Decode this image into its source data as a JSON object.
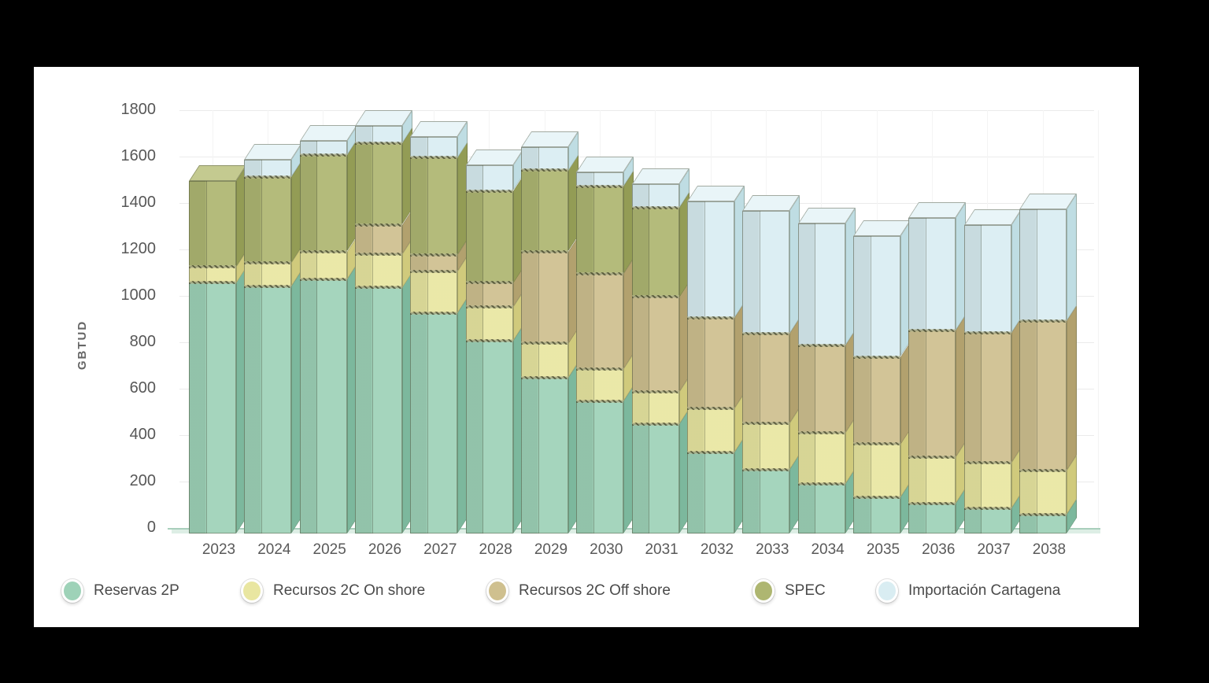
{
  "window": {
    "background": "#000000",
    "card_background": "#ffffff"
  },
  "chart_data": {
    "type": "bar",
    "stacked": true,
    "pseudo_3d": true,
    "title": "",
    "xlabel": "",
    "ylabel": "GBTUD",
    "ylim": [
      0,
      1800
    ],
    "yticks": [
      0,
      200,
      400,
      600,
      800,
      1000,
      1200,
      1400,
      1600,
      1800
    ],
    "grid": true,
    "legend_position": "bottom",
    "categories": [
      "2023",
      "2024",
      "2025",
      "2026",
      "2027",
      "2028",
      "2029",
      "2030",
      "2031",
      "2032",
      "2033",
      "2034",
      "2035",
      "2036",
      "2037",
      "2038"
    ],
    "series": [
      {
        "name": "Reservas 2P",
        "color": "#9ed2b8",
        "side_color": "#7cb89d",
        "top_color": "#c6e5d5",
        "values": [
          1080,
          1065,
          1095,
          1060,
          950,
          830,
          670,
          570,
          470,
          350,
          275,
          215,
          155,
          130,
          110,
          80
        ]
      },
      {
        "name": "Recursos 2C On shore",
        "color": "#e9e6a1",
        "side_color": "#d0ca7c",
        "top_color": "#f3f0c0",
        "values": [
          70,
          100,
          120,
          145,
          180,
          145,
          150,
          140,
          140,
          190,
          200,
          220,
          230,
          200,
          195,
          190
        ]
      },
      {
        "name": "Recursos 2C Off shore",
        "color": "#cfc08f",
        "side_color": "#b2a16e",
        "top_color": "#e0d5ab",
        "values": [
          0,
          0,
          0,
          125,
          70,
          105,
          395,
          410,
          410,
          390,
          385,
          375,
          375,
          545,
          560,
          645
        ]
      },
      {
        "name": "SPEC",
        "color": "#aeb671",
        "side_color": "#939c55",
        "top_color": "#c4ca90",
        "values": [
          370,
          370,
          415,
          350,
          420,
          395,
          350,
          375,
          385,
          0,
          0,
          0,
          0,
          0,
          0,
          0
        ]
      },
      {
        "name": "Importación Cartagena",
        "color": "#d9edf2",
        "side_color": "#bfdde3",
        "top_color": "#e9f5f8",
        "values": [
          0,
          75,
          60,
          75,
          90,
          110,
          100,
          60,
          100,
          500,
          530,
          525,
          520,
          485,
          465,
          480
        ]
      }
    ],
    "totals": [
      1520,
      1610,
      1690,
      1755,
      1710,
      1585,
      1665,
      1555,
      1505,
      1430,
      1390,
      1335,
      1280,
      1360,
      1330,
      1395
    ]
  },
  "legend": {
    "item_x": [
      35,
      263,
      575,
      913,
      1070
    ]
  },
  "layout_colors": {
    "gridline": "#ebebeb",
    "baseline": "#a9cfbc",
    "floor": "#ddeee5",
    "tick_text": "#575757"
  }
}
